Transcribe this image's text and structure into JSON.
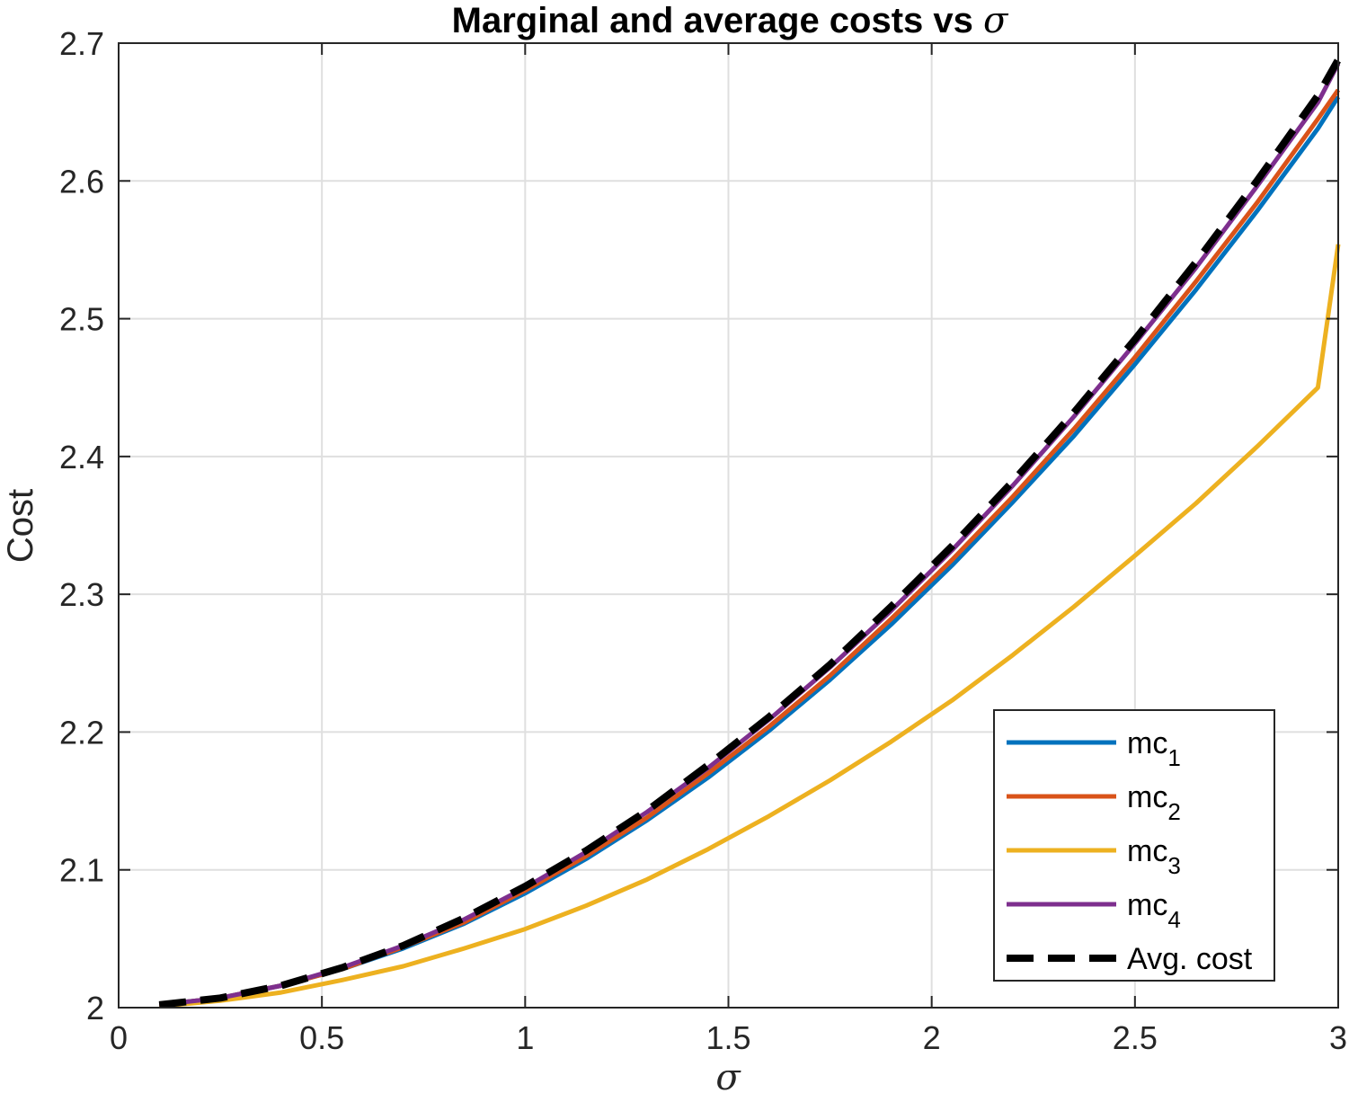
{
  "chart_data": {
    "type": "line",
    "title": "Marginal and average costs vs",
    "title_symbol": "σ",
    "xlabel": "σ",
    "ylabel": "Cost",
    "xlim": [
      0,
      3
    ],
    "ylim": [
      2,
      2.7
    ],
    "xticks": [
      0,
      0.5,
      1,
      1.5,
      2,
      2.5,
      3
    ],
    "xtick_labels": [
      "0",
      "0.5",
      "1",
      "1.5",
      "2",
      "2.5",
      "3"
    ],
    "yticks": [
      2,
      2.1,
      2.2,
      2.3,
      2.4,
      2.5,
      2.6,
      2.7
    ],
    "ytick_labels": [
      "2",
      "2.1",
      "2.2",
      "2.3",
      "2.4",
      "2.5",
      "2.6",
      "2.7"
    ],
    "grid": true,
    "legend_position": "bottom-right",
    "x": [
      0.1,
      0.25,
      0.4,
      0.55,
      0.7,
      0.85,
      1.0,
      1.15,
      1.3,
      1.45,
      1.6,
      1.75,
      1.9,
      2.05,
      2.2,
      2.35,
      2.5,
      2.65,
      2.8,
      2.95,
      3.0
    ],
    "series": [
      {
        "name": "mc",
        "sub": "1",
        "color": "#0072BD",
        "style": "solid",
        "values": [
          2.002,
          2.007,
          2.016,
          2.028,
          2.043,
          2.061,
          2.083,
          2.108,
          2.136,
          2.167,
          2.201,
          2.238,
          2.278,
          2.321,
          2.367,
          2.415,
          2.467,
          2.521,
          2.578,
          2.638,
          2.661
        ]
      },
      {
        "name": "mc",
        "sub": "2",
        "color": "#D95319",
        "style": "solid",
        "values": [
          2.002,
          2.007,
          2.016,
          2.028,
          2.044,
          2.062,
          2.085,
          2.11,
          2.138,
          2.17,
          2.204,
          2.241,
          2.282,
          2.325,
          2.371,
          2.42,
          2.472,
          2.527,
          2.584,
          2.645,
          2.666
        ]
      },
      {
        "name": "mc",
        "sub": "3",
        "color": "#EDB120",
        "style": "solid",
        "values": [
          2.001,
          2.005,
          2.011,
          2.02,
          2.03,
          2.043,
          2.057,
          2.074,
          2.093,
          2.115,
          2.139,
          2.165,
          2.193,
          2.223,
          2.256,
          2.291,
          2.328,
          2.366,
          2.407,
          2.45,
          2.554
        ]
      },
      {
        "name": "mc",
        "sub": "4",
        "color": "#7E2F8E",
        "style": "solid",
        "values": [
          2.002,
          2.007,
          2.016,
          2.029,
          2.045,
          2.064,
          2.087,
          2.113,
          2.142,
          2.174,
          2.209,
          2.247,
          2.288,
          2.332,
          2.379,
          2.429,
          2.482,
          2.537,
          2.596,
          2.657,
          2.685
        ]
      },
      {
        "name": "Avg. cost",
        "sub": "",
        "color": "#000000",
        "style": "dashed",
        "values": [
          2.002,
          2.007,
          2.016,
          2.029,
          2.045,
          2.065,
          2.088,
          2.114,
          2.143,
          2.176,
          2.211,
          2.249,
          2.291,
          2.335,
          2.382,
          2.432,
          2.485,
          2.541,
          2.6,
          2.662,
          2.688
        ]
      }
    ]
  }
}
